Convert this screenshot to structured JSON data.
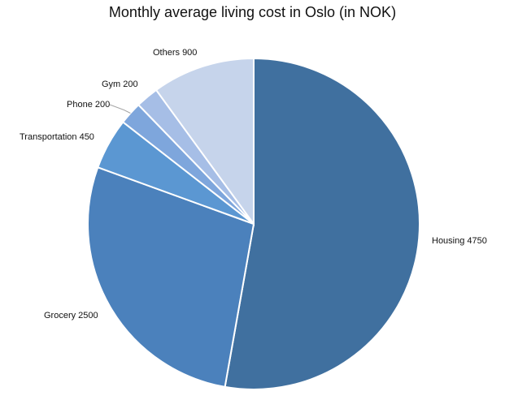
{
  "chart_data": {
    "type": "pie",
    "title": "Monthly average living cost in Oslo (in NOK)",
    "categories": [
      "Housing",
      "Grocery",
      "Transportation",
      "Phone",
      "Gym",
      "Others"
    ],
    "values": [
      4750,
      2500,
      450,
      200,
      200,
      900
    ],
    "labels": [
      "Housing 4750",
      "Grocery 2500",
      "Transportation 450",
      "Phone 200",
      "Gym 200",
      "Others 900"
    ],
    "colors": [
      "#40709f",
      "#4b81bc",
      "#5b97d2",
      "#7ea6dc",
      "#a6bee6",
      "#c6d4eb"
    ],
    "start_angle_deg": 0,
    "direction": "clockwise",
    "legend": "none"
  }
}
